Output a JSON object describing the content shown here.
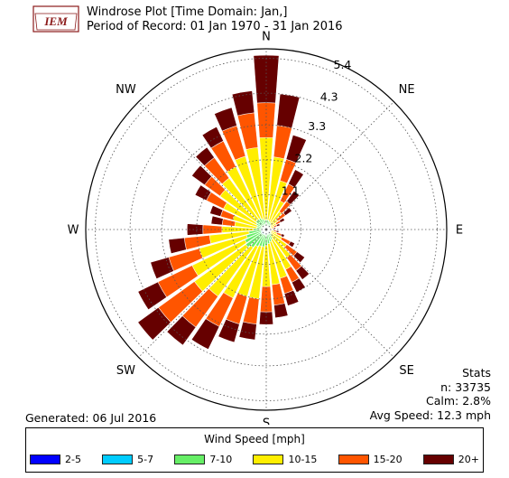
{
  "header": {
    "logo_text": "IEM",
    "title_line1": "Windrose Plot [Time Domain: Jan,]",
    "title_line2": "Period of Record: 01 Jan 1970 - 31 Jan 2016"
  },
  "stats": {
    "heading": "Stats",
    "n": "n: 33735",
    "calm": "Calm: 2.8%",
    "avg_speed": "Avg Speed: 12.3 mph"
  },
  "generated": "Generated: 06 Jul 2016",
  "legend": {
    "title": "Wind Speed [mph]",
    "items": [
      {
        "label": "2-5",
        "color": "#0000ff"
      },
      {
        "label": "5-7",
        "color": "#00ccff"
      },
      {
        "label": "7-10",
        "color": "#66ee66"
      },
      {
        "label": "10-15",
        "color": "#ffee00"
      },
      {
        "label": "15-20",
        "color": "#ff5500"
      },
      {
        "label": "20+",
        "color": "#660000"
      }
    ]
  },
  "chart_data": {
    "type": "windrose",
    "directions": [
      "N",
      "NE",
      "E",
      "SE",
      "S",
      "SW",
      "W",
      "NW"
    ],
    "radial_ticks": [
      1.1,
      2.2,
      3.3,
      4.3,
      5.4
    ],
    "rmax": 5.7,
    "grid": true,
    "bins": [
      "2-5",
      "5-7",
      "7-10",
      "10-15",
      "15-20",
      "20+"
    ],
    "colors": [
      "#0000ff",
      "#00ccff",
      "#66ee66",
      "#ffee00",
      "#ff5500",
      "#660000"
    ],
    "sector_width_deg": 10,
    "sectors": [
      {
        "dir": 0,
        "values": [
          0.02,
          0.1,
          0.3,
          2.9,
          4.0,
          5.5
        ]
      },
      {
        "dir": 10,
        "values": [
          0.02,
          0.1,
          0.3,
          2.3,
          3.3,
          4.3
        ]
      },
      {
        "dir": 20,
        "values": [
          0.02,
          0.1,
          0.28,
          1.6,
          2.3,
          3.1
        ]
      },
      {
        "dir": 30,
        "values": [
          0.02,
          0.1,
          0.25,
          1.0,
          1.6,
          2.1
        ]
      },
      {
        "dir": 40,
        "values": [
          0.02,
          0.1,
          0.22,
          0.7,
          1.1,
          1.5
        ]
      },
      {
        "dir": 50,
        "values": [
          0.02,
          0.08,
          0.18,
          0.45,
          0.75,
          1.0
        ]
      },
      {
        "dir": 60,
        "values": [
          0.02,
          0.06,
          0.15,
          0.35,
          0.5,
          0.65
        ]
      },
      {
        "dir": 70,
        "values": [
          0.02,
          0.06,
          0.12,
          0.25,
          0.35,
          0.45
        ]
      },
      {
        "dir": 80,
        "values": [
          0.02,
          0.05,
          0.1,
          0.2,
          0.25,
          0.3
        ]
      },
      {
        "dir": 90,
        "values": [
          0.02,
          0.05,
          0.1,
          0.18,
          0.22,
          0.28
        ]
      },
      {
        "dir": 100,
        "values": [
          0.02,
          0.05,
          0.1,
          0.25,
          0.32,
          0.4
        ]
      },
      {
        "dir": 110,
        "values": [
          0.02,
          0.06,
          0.12,
          0.35,
          0.5,
          0.6
        ]
      },
      {
        "dir": 120,
        "values": [
          0.02,
          0.06,
          0.15,
          0.55,
          0.85,
          1.0
        ]
      },
      {
        "dir": 130,
        "values": [
          0.02,
          0.08,
          0.2,
          0.8,
          1.2,
          1.5
        ]
      },
      {
        "dir": 140,
        "values": [
          0.02,
          0.1,
          0.25,
          1.1,
          1.6,
          1.95
        ]
      },
      {
        "dir": 150,
        "values": [
          0.03,
          0.12,
          0.35,
          1.4,
          1.85,
          2.2
        ]
      },
      {
        "dir": 160,
        "values": [
          0.03,
          0.14,
          0.4,
          1.6,
          2.1,
          2.5
        ]
      },
      {
        "dir": 170,
        "values": [
          0.03,
          0.15,
          0.45,
          1.75,
          2.4,
          2.8
        ]
      },
      {
        "dir": 180,
        "values": [
          0.03,
          0.15,
          0.5,
          1.8,
          2.6,
          3.0
        ]
      },
      {
        "dir": 190,
        "values": [
          0.03,
          0.15,
          0.55,
          2.2,
          3.0,
          3.5
        ]
      },
      {
        "dir": 200,
        "values": [
          0.03,
          0.16,
          0.55,
          2.2,
          3.1,
          3.7
        ]
      },
      {
        "dir": 210,
        "values": [
          0.03,
          0.16,
          0.6,
          2.4,
          3.4,
          4.2
        ]
      },
      {
        "dir": 220,
        "values": [
          0.03,
          0.18,
          0.7,
          2.6,
          3.8,
          4.5
        ]
      },
      {
        "dir": 230,
        "values": [
          0.03,
          0.18,
          0.8,
          2.8,
          4.2,
          5.0
        ]
      },
      {
        "dir": 240,
        "values": [
          0.03,
          0.18,
          0.75,
          2.6,
          3.8,
          4.5
        ]
      },
      {
        "dir": 250,
        "values": [
          0.03,
          0.16,
          0.65,
          2.2,
          3.2,
          3.8
        ]
      },
      {
        "dir": 260,
        "values": [
          0.03,
          0.15,
          0.55,
          1.8,
          2.6,
          3.1
        ]
      },
      {
        "dir": 270,
        "values": [
          0.02,
          0.12,
          0.4,
          1.4,
          2.0,
          2.5
        ]
      },
      {
        "dir": 280,
        "values": [
          0.02,
          0.1,
          0.3,
          1.0,
          1.4,
          1.75
        ]
      },
      {
        "dir": 290,
        "values": [
          0.02,
          0.1,
          0.3,
          1.1,
          1.5,
          1.85
        ]
      },
      {
        "dir": 300,
        "values": [
          0.02,
          0.1,
          0.35,
          1.5,
          2.1,
          2.5
        ]
      },
      {
        "dir": 310,
        "values": [
          0.02,
          0.12,
          0.4,
          1.8,
          2.4,
          2.9
        ]
      },
      {
        "dir": 320,
        "values": [
          0.02,
          0.12,
          0.4,
          2.0,
          2.8,
          3.2
        ]
      },
      {
        "dir": 330,
        "values": [
          0.02,
          0.12,
          0.4,
          2.2,
          3.1,
          3.6
        ]
      },
      {
        "dir": 340,
        "values": [
          0.02,
          0.12,
          0.35,
          2.4,
          3.4,
          4.0
        ]
      },
      {
        "dir": 350,
        "values": [
          0.02,
          0.1,
          0.3,
          2.6,
          3.7,
          4.4
        ]
      }
    ]
  }
}
